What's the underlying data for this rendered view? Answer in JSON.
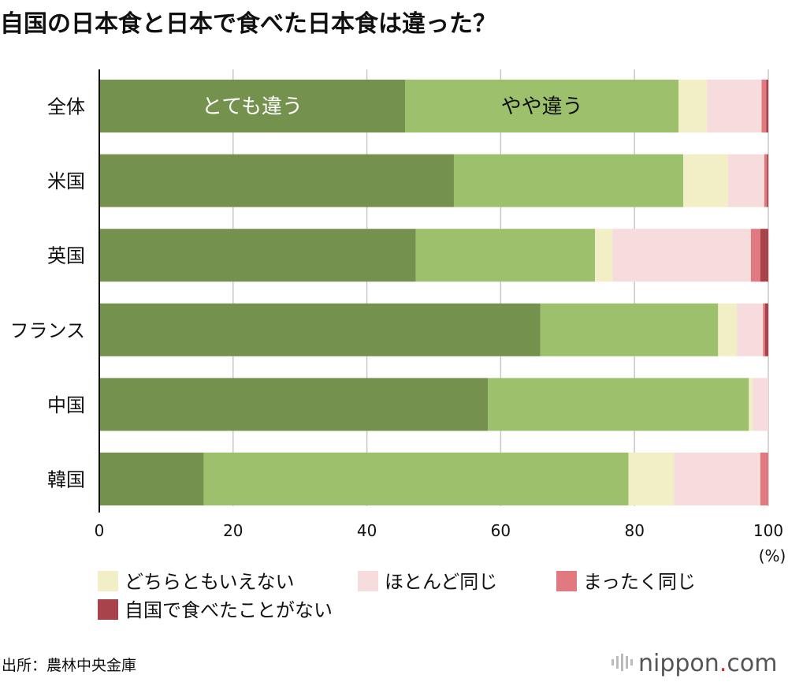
{
  "title": "自国の日本食と日本で食べた日本食は違った？",
  "source": "出所：農林中央金庫",
  "brand": {
    "main": "nippon",
    "dot": ".",
    "suffix": "com"
  },
  "chart_data": {
    "type": "bar",
    "orientation": "horizontal",
    "stacked": true,
    "categories": [
      "全体",
      "米国",
      "英国",
      "フランス",
      "中国",
      "韓国"
    ],
    "series": [
      {
        "name": "とても違う",
        "color": "#74914d",
        "values": [
          45.7,
          53.0,
          47.3,
          65.9,
          58.1,
          15.6
        ]
      },
      {
        "name": "やや違う",
        "color": "#9cc06b",
        "values": [
          40.9,
          34.3,
          26.8,
          26.6,
          39.0,
          63.5
        ]
      },
      {
        "name": "どちらともいえない",
        "color": "#f2efc6",
        "values": [
          4.2,
          6.7,
          2.6,
          2.8,
          0.6,
          6.8
        ]
      },
      {
        "name": "ほとんど同じ",
        "color": "#f6dcdc",
        "values": [
          8.2,
          5.4,
          20.7,
          3.9,
          2.3,
          12.9
        ]
      },
      {
        "name": "まったく同じ",
        "color": "#e07a80",
        "values": [
          0.7,
          0.4,
          1.4,
          0.3,
          0.0,
          1.2
        ]
      },
      {
        "name": "自国で食べたことがない",
        "color": "#a8434b",
        "values": [
          0.3,
          0.2,
          1.2,
          0.5,
          0.0,
          0.0
        ]
      }
    ],
    "inbar_labels": [
      "とても違う",
      "やや違う"
    ],
    "xlim": [
      0,
      100
    ],
    "xticks": [
      0,
      20,
      40,
      60,
      80,
      100
    ],
    "xunit": "(%)",
    "legend": {
      "position": "bottom",
      "items": [
        "どちらともいえない",
        "ほとんど同じ",
        "まったく同じ",
        "自国で食べたことがない"
      ]
    }
  }
}
